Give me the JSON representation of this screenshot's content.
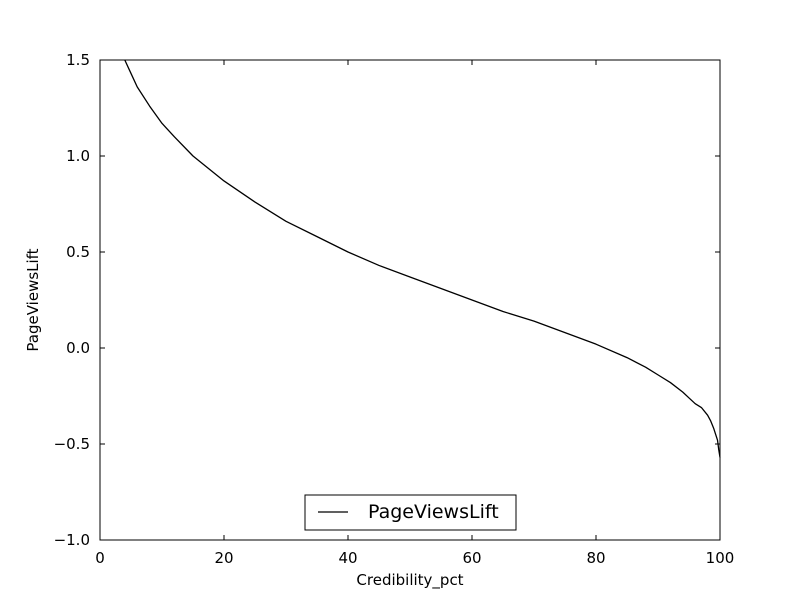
{
  "chart_data": {
    "type": "line",
    "xlabel": "Credibility_pct",
    "ylabel": "PageViewsLift",
    "xlim": [
      0,
      100
    ],
    "ylim": [
      -1.0,
      1.5
    ],
    "xticks": [
      0,
      20,
      40,
      60,
      80,
      100
    ],
    "xtick_labels": [
      "0",
      "20",
      "40",
      "60",
      "80",
      "100"
    ],
    "yticks": [
      -1.0,
      -0.5,
      0.0,
      0.5,
      1.0,
      1.5
    ],
    "ytick_labels": [
      "−1.0",
      "−0.5",
      "0.0",
      "0.5",
      "1.0",
      "1.5"
    ],
    "grid": false,
    "legend": {
      "position": "lower-center",
      "entries": [
        "PageViewsLift"
      ]
    },
    "series": [
      {
        "name": "PageViewsLift",
        "color": "#000000",
        "x": [
          4,
          5,
          6,
          8,
          10,
          12,
          15,
          20,
          25,
          30,
          35,
          40,
          45,
          50,
          55,
          60,
          65,
          70,
          75,
          80,
          85,
          88,
          90,
          92,
          94,
          95,
          96,
          97,
          98,
          98.5,
          99,
          99.3,
          99.6,
          99.8,
          100
        ],
        "y": [
          1.5,
          1.43,
          1.36,
          1.26,
          1.17,
          1.1,
          1.0,
          0.87,
          0.76,
          0.66,
          0.58,
          0.5,
          0.43,
          0.37,
          0.31,
          0.25,
          0.19,
          0.14,
          0.08,
          0.02,
          -0.05,
          -0.1,
          -0.14,
          -0.18,
          -0.23,
          -0.26,
          -0.29,
          -0.31,
          -0.35,
          -0.38,
          -0.42,
          -0.45,
          -0.48,
          -0.53,
          -0.57
        ]
      }
    ]
  }
}
